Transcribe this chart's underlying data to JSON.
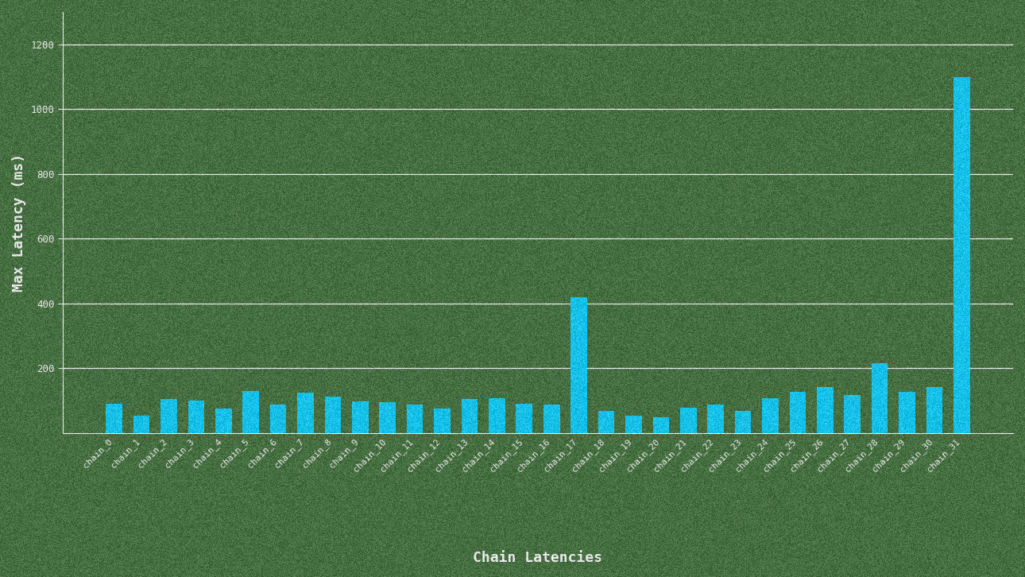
{
  "title": "",
  "xlabel": "Chain Latencies",
  "ylabel": "Max Latency (ms)",
  "background_color": "#3a6b34",
  "bar_color": "#00cfff",
  "grid_color": "#ffffff",
  "text_color": "#ffffff",
  "label_color": "#ffffff",
  "tick_color": "#ffffff",
  "categories": [
    "chain_0",
    "chain_1",
    "chain_2",
    "chain_3",
    "chain_4",
    "chain_5",
    "chain_6",
    "chain_7",
    "chain_8",
    "chain_9",
    "chain_10",
    "chain_11",
    "chain_12",
    "chain_13",
    "chain_14",
    "chain_15",
    "chain_16",
    "chain_17",
    "chain_18",
    "chain_19",
    "chain_20",
    "chain_21",
    "chain_22",
    "chain_23",
    "chain_24",
    "chain_25",
    "chain_26",
    "chain_27",
    "chain_28",
    "chain_29",
    "chain_30",
    "chain_31"
  ],
  "values": [
    90,
    55,
    105,
    100,
    75,
    130,
    88,
    125,
    112,
    98,
    95,
    88,
    75,
    105,
    108,
    92,
    88,
    420,
    68,
    55,
    48,
    78,
    88,
    68,
    108,
    128,
    142,
    118,
    215,
    128,
    142,
    1100
  ],
  "ylim": [
    0,
    1300
  ],
  "yticks": [
    200,
    400,
    600,
    800,
    1000,
    1200
  ],
  "figsize": [
    12.9,
    7.26
  ],
  "dpi": 100,
  "noise_seed": 42,
  "noise_alpha": 0.18
}
